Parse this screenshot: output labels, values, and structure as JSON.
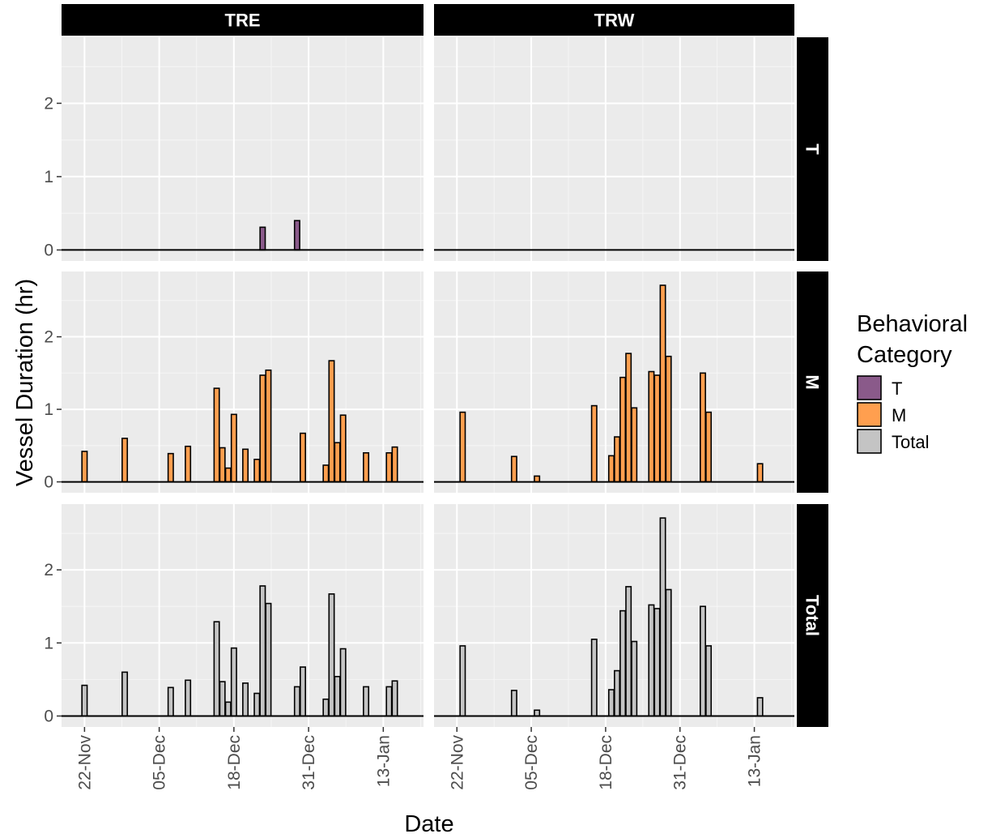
{
  "chart_data": {
    "type": "bar",
    "xlabel": "Date",
    "ylabel": "Vessel Duration (hr)",
    "columns": [
      "TRE",
      "TRW"
    ],
    "rows": [
      "T",
      "M",
      "Total"
    ],
    "x_ticks": [
      "22-Nov",
      "05-Dec",
      "18-Dec",
      "31-Dec",
      "13-Jan"
    ],
    "x_tick_dates": [
      "2019-11-22",
      "2019-12-05",
      "2019-12-18",
      "2019-12-31",
      "2020-01-13"
    ],
    "x_range": [
      "2019-11-18",
      "2020-01-20"
    ],
    "ylim": [
      -0.15,
      2.9
    ],
    "y_ticks": [
      0,
      1,
      2
    ],
    "grid": true,
    "legend": {
      "title": "Behavioral Category",
      "title_lines": [
        "Behavioral",
        "Category"
      ],
      "position": "right",
      "entries": [
        {
          "label": "T",
          "color": "#8a5a8a"
        },
        {
          "label": "M",
          "color": "#ff9f4f"
        },
        {
          "label": "Total",
          "color": "#c4c4c4"
        }
      ]
    },
    "colors": {
      "T": "#8a5a8a",
      "M": "#ff9f4f",
      "Total": "#c4c4c4"
    },
    "panels": [
      {
        "column": "TRE",
        "row": "T",
        "bars": [
          {
            "date": "2019-12-23",
            "value": 0.31
          },
          {
            "date": "2019-12-29",
            "value": 0.4
          }
        ]
      },
      {
        "column": "TRE",
        "row": "M",
        "bars": [
          {
            "date": "2019-11-22",
            "value": 0.42
          },
          {
            "date": "2019-11-29",
            "value": 0.6
          },
          {
            "date": "2019-12-07",
            "value": 0.39
          },
          {
            "date": "2019-12-10",
            "value": 0.49
          },
          {
            "date": "2019-12-15",
            "value": 1.29
          },
          {
            "date": "2019-12-16",
            "value": 0.47
          },
          {
            "date": "2019-12-17",
            "value": 0.19
          },
          {
            "date": "2019-12-18",
            "value": 0.93
          },
          {
            "date": "2019-12-20",
            "value": 0.45
          },
          {
            "date": "2019-12-22",
            "value": 0.31
          },
          {
            "date": "2019-12-23",
            "value": 1.47
          },
          {
            "date": "2019-12-24",
            "value": 1.54
          },
          {
            "date": "2019-12-30",
            "value": 0.67
          },
          {
            "date": "2020-01-03",
            "value": 0.23
          },
          {
            "date": "2020-01-04",
            "value": 1.67
          },
          {
            "date": "2020-01-05",
            "value": 0.54
          },
          {
            "date": "2020-01-06",
            "value": 0.92
          },
          {
            "date": "2020-01-10",
            "value": 0.4
          },
          {
            "date": "2020-01-14",
            "value": 0.4
          },
          {
            "date": "2020-01-15",
            "value": 0.48
          }
        ]
      },
      {
        "column": "TRE",
        "row": "Total",
        "bars": [
          {
            "date": "2019-11-22",
            "value": 0.42
          },
          {
            "date": "2019-11-29",
            "value": 0.6
          },
          {
            "date": "2019-12-07",
            "value": 0.39
          },
          {
            "date": "2019-12-10",
            "value": 0.49
          },
          {
            "date": "2019-12-15",
            "value": 1.29
          },
          {
            "date": "2019-12-16",
            "value": 0.47
          },
          {
            "date": "2019-12-17",
            "value": 0.19
          },
          {
            "date": "2019-12-18",
            "value": 0.93
          },
          {
            "date": "2019-12-20",
            "value": 0.45
          },
          {
            "date": "2019-12-22",
            "value": 0.31
          },
          {
            "date": "2019-12-23",
            "value": 1.78
          },
          {
            "date": "2019-12-24",
            "value": 1.54
          },
          {
            "date": "2019-12-29",
            "value": 0.4
          },
          {
            "date": "2019-12-30",
            "value": 0.67
          },
          {
            "date": "2020-01-03",
            "value": 0.23
          },
          {
            "date": "2020-01-04",
            "value": 1.67
          },
          {
            "date": "2020-01-05",
            "value": 0.54
          },
          {
            "date": "2020-01-06",
            "value": 0.92
          },
          {
            "date": "2020-01-10",
            "value": 0.4
          },
          {
            "date": "2020-01-14",
            "value": 0.4
          },
          {
            "date": "2020-01-15",
            "value": 0.48
          }
        ]
      },
      {
        "column": "TRW",
        "row": "T",
        "bars": []
      },
      {
        "column": "TRW",
        "row": "M",
        "bars": [
          {
            "date": "2019-11-23",
            "value": 0.96
          },
          {
            "date": "2019-12-02",
            "value": 0.35
          },
          {
            "date": "2019-12-06",
            "value": 0.08
          },
          {
            "date": "2019-12-16",
            "value": 1.05
          },
          {
            "date": "2019-12-19",
            "value": 0.36
          },
          {
            "date": "2019-12-20",
            "value": 0.62
          },
          {
            "date": "2019-12-21",
            "value": 1.44
          },
          {
            "date": "2019-12-22",
            "value": 1.77
          },
          {
            "date": "2019-12-23",
            "value": 1.02
          },
          {
            "date": "2019-12-26",
            "value": 1.52
          },
          {
            "date": "2019-12-27",
            "value": 1.47
          },
          {
            "date": "2019-12-28",
            "value": 2.71
          },
          {
            "date": "2019-12-29",
            "value": 1.73
          },
          {
            "date": "2020-01-04",
            "value": 1.5
          },
          {
            "date": "2020-01-05",
            "value": 0.96
          },
          {
            "date": "2020-01-14",
            "value": 0.25
          }
        ]
      },
      {
        "column": "TRW",
        "row": "Total",
        "bars": [
          {
            "date": "2019-11-23",
            "value": 0.96
          },
          {
            "date": "2019-12-02",
            "value": 0.35
          },
          {
            "date": "2019-12-06",
            "value": 0.08
          },
          {
            "date": "2019-12-16",
            "value": 1.05
          },
          {
            "date": "2019-12-19",
            "value": 0.36
          },
          {
            "date": "2019-12-20",
            "value": 0.62
          },
          {
            "date": "2019-12-21",
            "value": 1.44
          },
          {
            "date": "2019-12-22",
            "value": 1.77
          },
          {
            "date": "2019-12-23",
            "value": 1.02
          },
          {
            "date": "2019-12-26",
            "value": 1.52
          },
          {
            "date": "2019-12-27",
            "value": 1.47
          },
          {
            "date": "2019-12-28",
            "value": 2.71
          },
          {
            "date": "2019-12-29",
            "value": 1.73
          },
          {
            "date": "2020-01-04",
            "value": 1.5
          },
          {
            "date": "2020-01-05",
            "value": 0.96
          },
          {
            "date": "2020-01-14",
            "value": 0.25
          }
        ]
      }
    ]
  }
}
